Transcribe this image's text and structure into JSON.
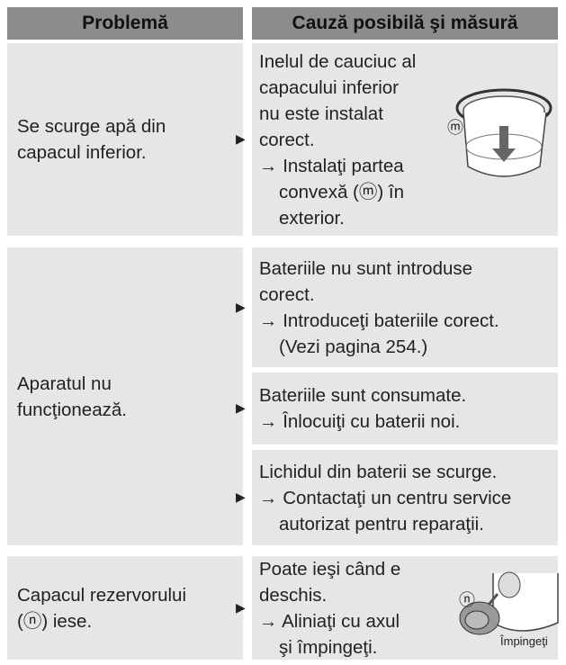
{
  "header": {
    "columns": [
      "Problemă",
      "Cauză posibilă şi măsură"
    ]
  },
  "rows": [
    {
      "problem": [
        "Se scurge apă din",
        "capacul inferior."
      ],
      "causes": [
        {
          "text": [
            "Inelul de cauciuc al",
            "capacului inferior",
            "nu este instalat",
            "corect."
          ],
          "action": [
            "→ Instalaţi partea",
            "convexă (ⓜ) în",
            "exterior."
          ]
        }
      ],
      "figure_label": "ⓜ"
    },
    {
      "problem": [
        "Aparatul nu",
        "funcţionează."
      ],
      "causes": [
        {
          "text": [
            "Bateriile nu sunt introduse",
            "corect."
          ],
          "action": [
            "→ Introduceţi bateriile corect.",
            "(Vezi pagina 254.)"
          ]
        },
        {
          "text": [
            "Bateriile sunt consumate."
          ],
          "action": [
            "→ Înlocuiţi cu baterii noi."
          ]
        },
        {
          "text": [
            "Lichidul din baterii se scurge."
          ],
          "action": [
            "→ Contactaţi un centru service",
            "autorizat pentru reparaţii."
          ]
        }
      ]
    },
    {
      "problem": [
        "Capacul rezervorului",
        "(ⓝ) iese."
      ],
      "causes": [
        {
          "text": [
            "Poate ieşi când e",
            "deschis."
          ],
          "action": [
            "→ Aliniaţi cu axul",
            "şi împingeţi."
          ]
        }
      ],
      "figure_label": "ⓝ",
      "figure_caption": "Împingeţi"
    }
  ]
}
